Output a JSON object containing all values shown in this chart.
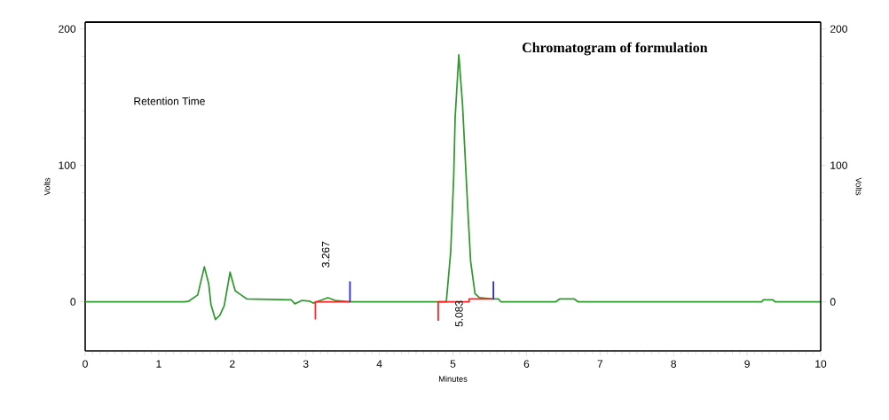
{
  "chart_data": {
    "type": "line",
    "title": "Chromatogram of formulation",
    "xlabel": "Minutes",
    "ylabel": "Volts",
    "y2label": "Volts",
    "annotations": [
      "Retention Time",
      "3.267",
      "5.083"
    ],
    "xlim": [
      0,
      10
    ],
    "xticks": [
      0,
      1,
      2,
      3,
      4,
      5,
      6,
      7,
      8,
      9,
      10
    ],
    "ylim": [
      -36,
      205
    ],
    "yticks": [
      0,
      100,
      200
    ],
    "y2lim": [
      -36,
      205
    ],
    "y2ticks": [
      0,
      100,
      200
    ],
    "grid": false,
    "legend": false,
    "marker": "none",
    "line_style": "solid",
    "series": [
      {
        "color": "#2e9a2e",
        "x": [
          0,
          1.35,
          1.41,
          1.53,
          1.62,
          1.68,
          1.71,
          1.77,
          1.83,
          1.89,
          1.97,
          2.04,
          2.12,
          2.2,
          2.8,
          2.85,
          2.95,
          3.05,
          3.1,
          3.2,
          3.3,
          3.4,
          3.6,
          4.91,
          4.97,
          5.01,
          5.03,
          5.08,
          5.13,
          5.2,
          5.24,
          5.3,
          5.36,
          5.55,
          5.62,
          5.65,
          6.4,
          6.45,
          6.65,
          6.7,
          9.2,
          9.22,
          9.35,
          9.38,
          10
        ],
        "values": [
          0,
          0,
          0.5,
          5,
          25.6,
          13,
          -2,
          -13,
          -10,
          -3,
          21.7,
          8,
          5,
          2,
          1.5,
          -1.5,
          1,
          0.5,
          -1,
          1,
          3,
          1,
          0,
          0,
          37,
          91,
          135,
          181,
          145,
          70,
          30,
          6,
          3,
          2,
          2,
          0,
          0,
          2,
          2,
          0,
          0,
          1.5,
          1.5,
          0,
          0
        ]
      },
      {
        "color": "#ff2020",
        "x": [
          3.13,
          3.13,
          3.6
        ],
        "values": [
          -13,
          0,
          0
        ]
      },
      {
        "color": "#ff2020",
        "x": [
          4.8,
          4.8,
          5.22,
          5.22,
          5.55
        ],
        "values": [
          -14,
          0,
          0,
          2,
          2
        ]
      },
      {
        "color": "#2020ff",
        "x": [
          3.6,
          3.6
        ],
        "values": [
          0,
          15
        ]
      },
      {
        "color": "#2020ff",
        "x": [
          5.55,
          5.55
        ],
        "values": [
          2,
          15
        ]
      }
    ]
  }
}
